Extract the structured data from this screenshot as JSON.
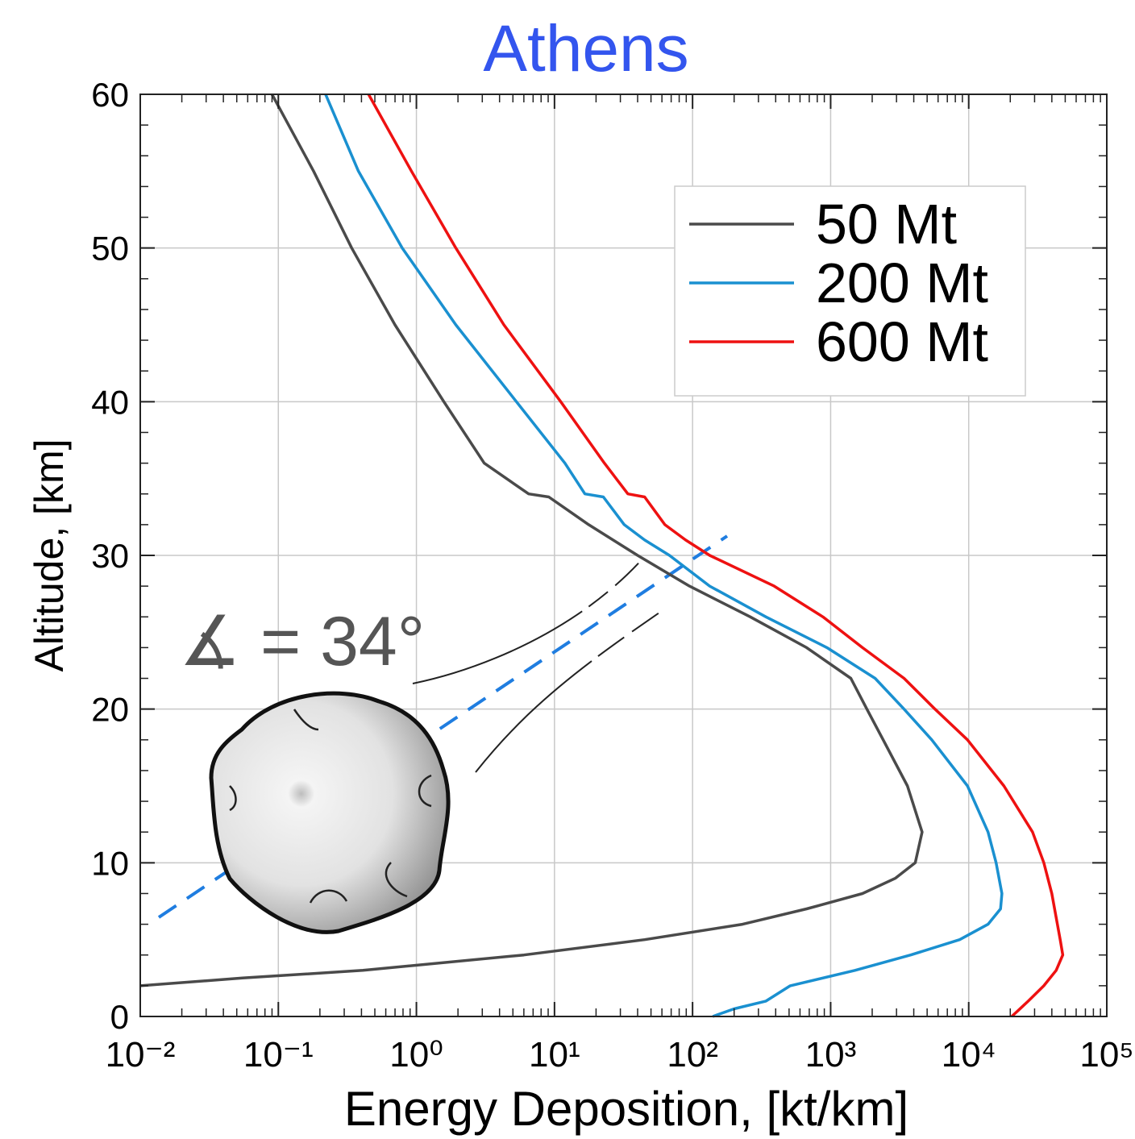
{
  "chart_data": {
    "type": "line",
    "title": "Athens",
    "xlabel": "Energy Deposition, [kt/km]",
    "ylabel": "Altitude, [km]",
    "annotation": "∡ = 34°",
    "xscale": "log",
    "grid": true,
    "legend": "upper right",
    "xlim": [
      0.01,
      100000
    ],
    "xticks": [
      {
        "value": 0.01,
        "label": "10⁻²"
      },
      {
        "value": 0.1,
        "label": "10⁻¹"
      },
      {
        "value": 1,
        "label": "10⁰"
      },
      {
        "value": 10,
        "label": "10¹"
      },
      {
        "value": 100,
        "label": "10²"
      },
      {
        "value": 1000,
        "label": "10³"
      },
      {
        "value": 10000,
        "label": "10⁴"
      },
      {
        "value": 100000,
        "label": "10⁵"
      }
    ],
    "ylim": [
      0,
      60
    ],
    "yticks": [
      0,
      10,
      20,
      30,
      40,
      50,
      60
    ],
    "series": [
      {
        "name": "50 Mt",
        "color": "#4a4a4a",
        "x": [
          0.09,
          0.18,
          0.34,
          0.7,
          1.58,
          3.1,
          6.5,
          9.1,
          17.7,
          40,
          95,
          262,
          670,
          1400,
          1830,
          2400,
          3600,
          4600,
          4100,
          2950,
          1700,
          670,
          230,
          45,
          6,
          0.41,
          0.055,
          0.01
        ],
        "y": [
          60,
          55,
          50,
          45,
          40,
          36,
          34,
          33.8,
          32,
          30,
          28,
          26,
          24,
          22,
          20,
          18,
          15,
          12,
          10,
          9,
          8,
          7,
          6,
          5,
          4,
          3,
          2.5,
          2
        ]
      },
      {
        "name": "200 Mt",
        "color": "#1a90d0",
        "x": [
          0.22,
          0.38,
          0.79,
          1.93,
          5.3,
          11.9,
          16.6,
          22.6,
          32,
          45,
          68,
          133,
          340,
          940,
          2100,
          3400,
          5400,
          9800,
          13800,
          15800,
          17400,
          17000,
          13800,
          8600,
          3800,
          1500,
          510,
          340,
          200,
          140
        ],
        "y": [
          60,
          55,
          50,
          45,
          40,
          36,
          34,
          33.8,
          32,
          31,
          30,
          28,
          26,
          24,
          22,
          20,
          18,
          15,
          12,
          10,
          8,
          7,
          6,
          5,
          4,
          3,
          2,
          1,
          0.5,
          0
        ]
      },
      {
        "name": "600 Mt",
        "color": "#ee1111",
        "x": [
          0.45,
          0.92,
          1.93,
          4.3,
          11.1,
          23,
          34,
          45,
          63,
          89,
          133,
          390,
          880,
          1700,
          3400,
          5700,
          9800,
          18000,
          29000,
          35000,
          40000,
          46000,
          48000,
          43000,
          35000,
          27000,
          20500
        ],
        "y": [
          60,
          55,
          50,
          45,
          40,
          36,
          34,
          33.8,
          32,
          31,
          30,
          28,
          26,
          24,
          22,
          20,
          18,
          15,
          12,
          10,
          8,
          5,
          4,
          3,
          2,
          1,
          0
        ]
      }
    ]
  }
}
